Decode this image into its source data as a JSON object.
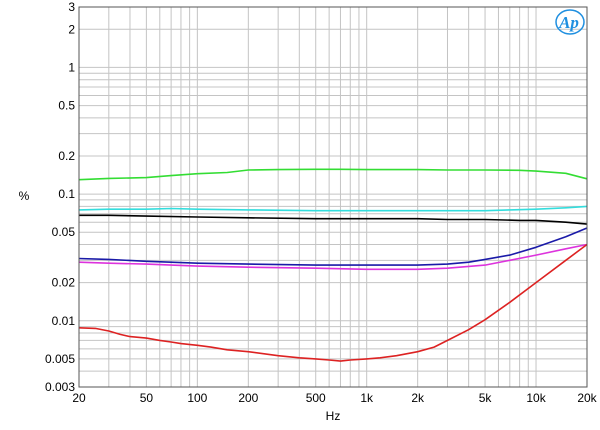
{
  "chart_data": {
    "type": "line",
    "xlabel": "Hz",
    "ylabel": "%",
    "x_scale": "log",
    "y_scale": "log",
    "xlim": [
      20,
      20000
    ],
    "ylim": [
      0.003,
      3
    ],
    "grid": true,
    "x_ticks": [
      {
        "value": 20,
        "label": "20"
      },
      {
        "value": 50,
        "label": "50"
      },
      {
        "value": 100,
        "label": "100"
      },
      {
        "value": 200,
        "label": "200"
      },
      {
        "value": 500,
        "label": "500"
      },
      {
        "value": 1000,
        "label": "1k"
      },
      {
        "value": 2000,
        "label": "2k"
      },
      {
        "value": 5000,
        "label": "5k"
      },
      {
        "value": 10000,
        "label": "10k"
      },
      {
        "value": 20000,
        "label": "20k"
      }
    ],
    "y_ticks": [
      {
        "value": 3,
        "label": "3"
      },
      {
        "value": 2,
        "label": "2"
      },
      {
        "value": 1,
        "label": "1"
      },
      {
        "value": 0.5,
        "label": "0.5"
      },
      {
        "value": 0.2,
        "label": "0.2"
      },
      {
        "value": 0.1,
        "label": "0.1"
      },
      {
        "value": 0.05,
        "label": "0.05"
      },
      {
        "value": 0.02,
        "label": "0.02"
      },
      {
        "value": 0.01,
        "label": "0.01"
      },
      {
        "value": 0.005,
        "label": "0.005"
      },
      {
        "value": 0.003,
        "label": "0.003"
      }
    ],
    "series": [
      {
        "color": "#33dd33",
        "points": [
          [
            20,
            0.13
          ],
          [
            30,
            0.133
          ],
          [
            50,
            0.135
          ],
          [
            70,
            0.14
          ],
          [
            100,
            0.145
          ],
          [
            150,
            0.148
          ],
          [
            200,
            0.155
          ],
          [
            300,
            0.156
          ],
          [
            500,
            0.157
          ],
          [
            700,
            0.157
          ],
          [
            1000,
            0.156
          ],
          [
            2000,
            0.156
          ],
          [
            3000,
            0.155
          ],
          [
            5000,
            0.155
          ],
          [
            8000,
            0.154
          ],
          [
            10000,
            0.152
          ],
          [
            15000,
            0.146
          ],
          [
            20000,
            0.132
          ]
        ]
      },
      {
        "color": "#33dddd",
        "points": [
          [
            20,
            0.075
          ],
          [
            30,
            0.076
          ],
          [
            50,
            0.076
          ],
          [
            70,
            0.077
          ],
          [
            100,
            0.076
          ],
          [
            200,
            0.075
          ],
          [
            500,
            0.074
          ],
          [
            1000,
            0.074
          ],
          [
            2000,
            0.074
          ],
          [
            3000,
            0.074
          ],
          [
            5000,
            0.074
          ],
          [
            7000,
            0.075
          ],
          [
            10000,
            0.076
          ],
          [
            15000,
            0.078
          ],
          [
            20000,
            0.08
          ]
        ]
      },
      {
        "color": "#000000",
        "points": [
          [
            20,
            0.068
          ],
          [
            30,
            0.068
          ],
          [
            50,
            0.067
          ],
          [
            100,
            0.066
          ],
          [
            200,
            0.065
          ],
          [
            500,
            0.064
          ],
          [
            1000,
            0.064
          ],
          [
            2000,
            0.064
          ],
          [
            3000,
            0.063
          ],
          [
            5000,
            0.063
          ],
          [
            8000,
            0.062
          ],
          [
            10000,
            0.062
          ],
          [
            15000,
            0.06
          ],
          [
            20000,
            0.058
          ]
        ]
      },
      {
        "color": "#1a1aa8",
        "points": [
          [
            20,
            0.031
          ],
          [
            30,
            0.0305
          ],
          [
            50,
            0.0295
          ],
          [
            70,
            0.029
          ],
          [
            100,
            0.0285
          ],
          [
            200,
            0.028
          ],
          [
            500,
            0.0275
          ],
          [
            1000,
            0.0275
          ],
          [
            2000,
            0.0275
          ],
          [
            3000,
            0.028
          ],
          [
            4000,
            0.029
          ],
          [
            5000,
            0.0305
          ],
          [
            7000,
            0.033
          ],
          [
            10000,
            0.038
          ],
          [
            15000,
            0.046
          ],
          [
            20000,
            0.054
          ]
        ]
      },
      {
        "color": "#dd33dd",
        "points": [
          [
            20,
            0.029
          ],
          [
            30,
            0.0285
          ],
          [
            50,
            0.028
          ],
          [
            70,
            0.0275
          ],
          [
            100,
            0.027
          ],
          [
            200,
            0.0265
          ],
          [
            500,
            0.026
          ],
          [
            1000,
            0.0255
          ],
          [
            2000,
            0.0255
          ],
          [
            3000,
            0.026
          ],
          [
            5000,
            0.0275
          ],
          [
            7000,
            0.03
          ],
          [
            10000,
            0.033
          ],
          [
            15000,
            0.037
          ],
          [
            20000,
            0.04
          ]
        ]
      },
      {
        "color": "#dd2222",
        "points": [
          [
            20,
            0.0088
          ],
          [
            25,
            0.0087
          ],
          [
            30,
            0.0083
          ],
          [
            35,
            0.0078
          ],
          [
            40,
            0.0075
          ],
          [
            50,
            0.0073
          ],
          [
            60,
            0.007
          ],
          [
            70,
            0.0068
          ],
          [
            80,
            0.0066
          ],
          [
            100,
            0.0064
          ],
          [
            120,
            0.0062
          ],
          [
            150,
            0.0059
          ],
          [
            200,
            0.0057
          ],
          [
            300,
            0.0053
          ],
          [
            400,
            0.0051
          ],
          [
            500,
            0.005
          ],
          [
            600,
            0.0049
          ],
          [
            700,
            0.0048
          ],
          [
            800,
            0.0049
          ],
          [
            1000,
            0.005
          ],
          [
            1200,
            0.0051
          ],
          [
            1500,
            0.0053
          ],
          [
            2000,
            0.0057
          ],
          [
            2500,
            0.0062
          ],
          [
            3000,
            0.007
          ],
          [
            4000,
            0.0085
          ],
          [
            5000,
            0.0102
          ],
          [
            7000,
            0.014
          ],
          [
            10000,
            0.02
          ],
          [
            15000,
            0.03
          ],
          [
            20000,
            0.04
          ]
        ]
      }
    ]
  },
  "logo": {
    "text": "Ap"
  }
}
